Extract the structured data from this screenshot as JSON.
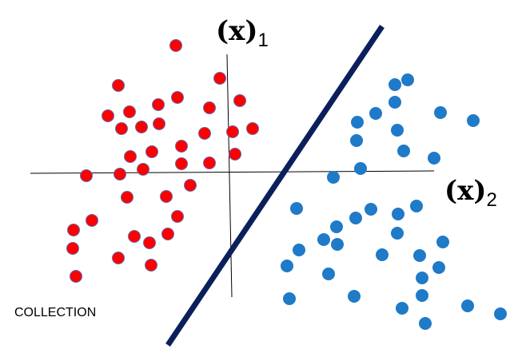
{
  "labels": {
    "axis1": {
      "base": "(x)",
      "sub": "1"
    },
    "axis2": {
      "base": "(x)",
      "sub": "2"
    },
    "caption": "COLLECTION"
  }
}
